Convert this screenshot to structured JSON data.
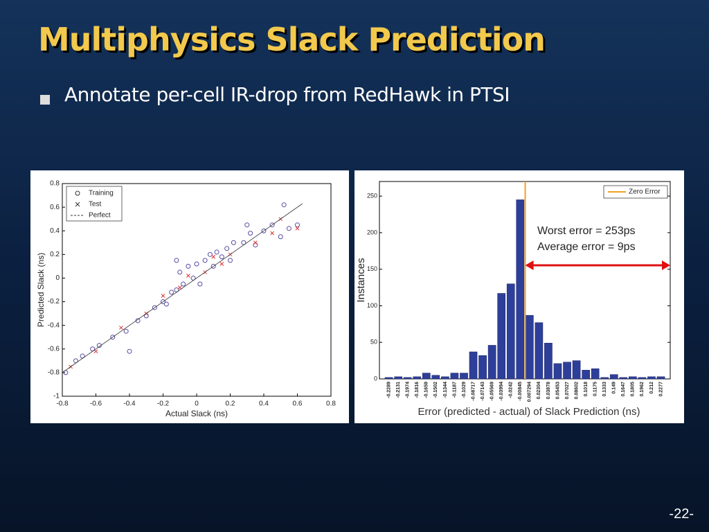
{
  "slide": {
    "title": "Multiphysics Slack Prediction",
    "bullet": "Annotate per-cell IR-drop from RedHawk in PTSI",
    "page_number": "-22-"
  },
  "chart_data": [
    {
      "type": "scatter",
      "xlabel": "Actual Slack (ns)",
      "ylabel": "Predicted Slack (ns)",
      "xlim": [
        -0.8,
        0.8
      ],
      "ylim": [
        -1,
        0.8
      ],
      "xticks": [
        -0.8,
        -0.6,
        -0.4,
        -0.2,
        0,
        0.2,
        0.4,
        0.6,
        0.8
      ],
      "yticks": [
        -1,
        -0.8,
        -0.6,
        -0.4,
        -0.2,
        0,
        0.2,
        0.4,
        0.6,
        0.8
      ],
      "legend": "top-left",
      "series": [
        {
          "name": "Training",
          "marker": "circle",
          "color": "#5a4aa0",
          "x": [
            -0.78,
            -0.72,
            -0.68,
            -0.62,
            -0.58,
            -0.5,
            -0.42,
            -0.35,
            -0.3,
            -0.25,
            -0.2,
            -0.18,
            -0.15,
            -0.12,
            -0.1,
            -0.08,
            -0.05,
            -0.02,
            0,
            0.02,
            0.05,
            0.08,
            0.1,
            0.12,
            0.15,
            0.18,
            0.2,
            0.22,
            0.28,
            0.32,
            0.35,
            0.4,
            0.45,
            0.5,
            0.52,
            0.55,
            0.6,
            -0.4,
            -0.12,
            0.3
          ],
          "y": [
            -0.8,
            -0.7,
            -0.66,
            -0.6,
            -0.57,
            -0.5,
            -0.45,
            -0.36,
            -0.32,
            -0.25,
            -0.2,
            -0.22,
            -0.12,
            -0.1,
            0.05,
            -0.05,
            0.1,
            0,
            0.12,
            -0.05,
            0.15,
            0.2,
            0.1,
            0.22,
            0.18,
            0.25,
            0.15,
            0.3,
            0.3,
            0.38,
            0.28,
            0.4,
            0.45,
            0.35,
            0.62,
            0.42,
            0.45,
            -0.62,
            0.15,
            0.45
          ]
        },
        {
          "name": "Test",
          "marker": "x",
          "color": "#e03030",
          "x": [
            -0.75,
            -0.6,
            -0.45,
            -0.3,
            -0.2,
            -0.1,
            -0.05,
            0.05,
            0.1,
            0.15,
            0.2,
            0.35,
            0.45,
            0.5,
            0.6
          ],
          "y": [
            -0.75,
            -0.62,
            -0.42,
            -0.3,
            -0.15,
            -0.08,
            0.02,
            0.05,
            0.18,
            0.12,
            0.2,
            0.3,
            0.38,
            0.5,
            0.42
          ]
        },
        {
          "name": "Perfect",
          "marker": "dashed-line",
          "color": "#333333",
          "x": [
            -0.8,
            0.63
          ],
          "y": [
            -0.8,
            0.63
          ]
        }
      ]
    },
    {
      "type": "histogram",
      "xlabel": "Error (predicted - actual) of Slack Prediction (ns)",
      "ylabel": "Instances",
      "x": [
        -0.2289,
        -0.2131,
        -0.1974,
        -0.1816,
        -0.1659,
        -0.1502,
        -0.1344,
        -0.1187,
        -0.1029,
        -0.08717,
        -0.07143,
        -0.05569,
        -0.03994,
        -0.0242,
        -0.00845,
        0.007294,
        0.02304,
        0.03878,
        0.05453,
        0.07027,
        0.08602,
        0.1018,
        0.1175,
        0.1333,
        0.149,
        0.1647,
        0.1805,
        0.1962,
        0.212,
        0.2277
      ],
      "values": [
        2,
        3,
        2,
        3,
        8,
        5,
        3,
        8,
        8,
        37,
        32,
        46,
        117,
        130,
        245,
        87,
        77,
        49,
        21,
        23,
        25,
        12,
        14,
        2,
        6,
        2,
        3,
        2,
        3,
        3
      ],
      "color": "#2e3f9a",
      "xlim": [
        -0.2447,
        0.2434
      ],
      "ylim": [
        0,
        270
      ],
      "yticks": [
        0,
        50,
        100,
        150,
        200,
        250
      ],
      "vline": {
        "name": "Zero Error",
        "value": 0,
        "color": "#f0a020"
      },
      "legend": "top-right",
      "annotations": [
        "Worst error = 253ps",
        "Average error = 9ps"
      ],
      "arrow_color": "#e01010"
    }
  ]
}
